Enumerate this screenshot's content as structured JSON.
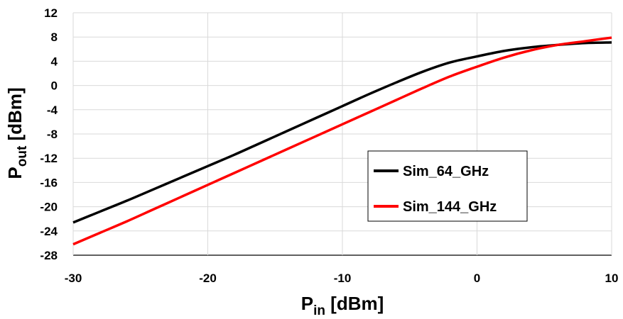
{
  "chart_data": {
    "type": "line",
    "title": "",
    "xlabel": {
      "main": "P",
      "sub": "in",
      "unit": " [dBm]"
    },
    "ylabel": {
      "main": "P",
      "sub": "out",
      "unit": " [dBm]"
    },
    "xlim": [
      -30,
      10
    ],
    "ylim": [
      -28,
      12
    ],
    "xticks": [
      -30,
      -20,
      -10,
      0,
      10
    ],
    "yticks": [
      -28,
      -24,
      -20,
      -16,
      -12,
      -8,
      -4,
      0,
      4,
      8,
      12
    ],
    "grid": true,
    "legend_position": "center-right",
    "series": [
      {
        "name": "Sim_64_GHz",
        "color": "#000000",
        "x": [
          -30,
          -28,
          -26,
          -24,
          -22,
          -20,
          -18,
          -16,
          -14,
          -12,
          -10,
          -8,
          -6,
          -4,
          -2,
          0,
          2,
          4,
          6,
          8,
          10
        ],
        "y": [
          -22.6,
          -20.8,
          -19.0,
          -17.1,
          -15.2,
          -13.3,
          -11.4,
          -9.4,
          -7.4,
          -5.4,
          -3.4,
          -1.4,
          0.5,
          2.3,
          3.8,
          4.8,
          5.7,
          6.3,
          6.7,
          7.0,
          7.1
        ]
      },
      {
        "name": "Sim_144_GHz",
        "color": "#ff0000",
        "x": [
          -30,
          -28,
          -26,
          -24,
          -22,
          -20,
          -18,
          -16,
          -14,
          -12,
          -10,
          -8,
          -6,
          -4,
          -2,
          0,
          2,
          4,
          6,
          8,
          10
        ],
        "y": [
          -26.2,
          -24.3,
          -22.4,
          -20.4,
          -18.4,
          -16.4,
          -14.4,
          -12.4,
          -10.4,
          -8.4,
          -6.4,
          -4.4,
          -2.4,
          -0.4,
          1.5,
          3.1,
          4.6,
          5.8,
          6.7,
          7.3,
          7.9
        ]
      }
    ]
  }
}
